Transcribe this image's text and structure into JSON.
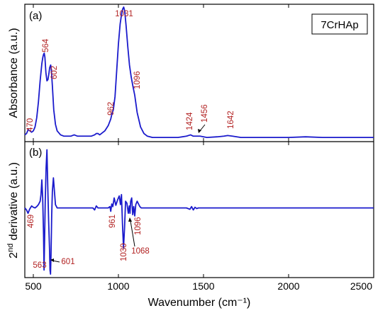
{
  "chart_data": [
    {
      "type": "line",
      "panel": "(a)",
      "legend": "7CrHAp",
      "xlabel": "Wavenumber (cm⁻¹)",
      "ylabel": "Absorbance (a.u.)",
      "xlim": [
        450,
        2500
      ],
      "ylim": [
        0,
        1.0
      ],
      "xticks": [
        500,
        1000,
        1500,
        2000,
        2500
      ],
      "series": [
        {
          "color": "#1a1acc",
          "x": [
            450,
            460,
            470,
            480,
            490,
            500,
            510,
            520,
            530,
            540,
            550,
            556,
            560,
            564,
            568,
            574,
            580,
            586,
            592,
            596,
            602,
            606,
            612,
            620,
            630,
            640,
            660,
            680,
            700,
            720,
            740,
            760,
            780,
            800,
            820,
            840,
            860,
            870,
            880,
            890,
            900,
            920,
            940,
            955,
            962,
            970,
            980,
            990,
            1000,
            1010,
            1020,
            1025,
            1031,
            1037,
            1045,
            1055,
            1065,
            1075,
            1085,
            1096,
            1110,
            1130,
            1150,
            1170,
            1200,
            1250,
            1300,
            1350,
            1400,
            1424,
            1440,
            1456,
            1480,
            1520,
            1580,
            1620,
            1642,
            1670,
            1720,
            1800,
            1900,
            2000,
            2100,
            2200,
            2300,
            2400,
            2500
          ],
          "y": [
            0.03,
            0.04,
            0.07,
            0.06,
            0.05,
            0.06,
            0.09,
            0.16,
            0.28,
            0.44,
            0.57,
            0.62,
            0.64,
            0.65,
            0.62,
            0.5,
            0.44,
            0.45,
            0.5,
            0.54,
            0.56,
            0.52,
            0.4,
            0.22,
            0.11,
            0.06,
            0.03,
            0.02,
            0.02,
            0.02,
            0.03,
            0.02,
            0.02,
            0.02,
            0.02,
            0.02,
            0.03,
            0.04,
            0.04,
            0.03,
            0.04,
            0.06,
            0.1,
            0.15,
            0.19,
            0.22,
            0.32,
            0.52,
            0.72,
            0.87,
            0.96,
            0.985,
            1.0,
            0.97,
            0.86,
            0.7,
            0.56,
            0.47,
            0.4,
            0.33,
            0.2,
            0.09,
            0.04,
            0.02,
            0.01,
            0.01,
            0.01,
            0.01,
            0.02,
            0.03,
            0.02,
            0.02,
            0.02,
            0.01,
            0.015,
            0.02,
            0.025,
            0.02,
            0.01,
            0.01,
            0.01,
            0.01,
            0.015,
            0.01,
            0.01,
            0.01,
            0.01
          ]
        }
      ],
      "annotations": [
        "470",
        "564",
        "602",
        "962",
        "1031",
        "1096",
        "1424",
        "1456",
        "1642"
      ]
    },
    {
      "type": "line",
      "panel": "(b)",
      "xlabel": "Wavenumber (cm⁻¹)",
      "ylabel_prefix": "2",
      "ylabel_sup": "nd",
      "ylabel_suffix": " derivative (a.u.)",
      "xlim": [
        450,
        2500
      ],
      "ylim": [
        -1.0,
        0.95
      ],
      "xticks": [
        500,
        1000,
        1500,
        2000,
        2500
      ],
      "xtick_labels": [
        "500",
        "1000",
        "1500",
        "2000",
        "2500"
      ],
      "series": [
        {
          "color": "#1a1acc",
          "x": [
            450,
            460,
            469,
            478,
            490,
            500,
            510,
            520,
            530,
            540,
            545,
            550,
            555,
            560,
            563,
            566,
            570,
            575,
            580,
            585,
            590,
            595,
            598,
            601,
            604,
            608,
            612,
            618,
            624,
            630,
            640,
            660,
            700,
            750,
            800,
            850,
            860,
            870,
            880,
            900,
            920,
            940,
            950,
            955,
            961,
            967,
            975,
            985,
            995,
            1005,
            1012,
            1018,
            1024,
            1030,
            1036,
            1042,
            1050,
            1058,
            1064,
            1068,
            1072,
            1078,
            1084,
            1090,
            1096,
            1102,
            1110,
            1118,
            1126,
            1134,
            1145,
            1160,
            1200,
            1300,
            1400,
            1420,
            1430,
            1440,
            1450,
            1460,
            1470,
            1500,
            1600,
            1700,
            1800,
            2000,
            2200,
            2400,
            2500
          ],
          "y": [
            0,
            -0.03,
            -0.08,
            -0.02,
            0.03,
            0.01,
            0,
            0.02,
            0.05,
            0.1,
            0.2,
            0.42,
            0.15,
            -0.4,
            -0.93,
            -0.5,
            0.1,
            0.6,
            0.87,
            0.3,
            -0.2,
            -0.6,
            -0.93,
            -0.99,
            -0.7,
            -0.1,
            0.25,
            0.45,
            0.25,
            0.05,
            0,
            0,
            0,
            0,
            0,
            0,
            -0.03,
            0.03,
            0,
            0,
            0,
            0,
            0.02,
            -0.05,
            0.06,
            0.02,
            0.15,
            0.04,
            0.12,
            0.18,
            0.05,
            0.2,
            -0.25,
            -0.6,
            -0.3,
            0.1,
            0.07,
            -0.08,
            0.03,
            -0.08,
            0.1,
            0.15,
            -0.1,
            0.02,
            -0.12,
            0.05,
            0.1,
            0.06,
            0.02,
            0,
            0,
            0,
            0,
            0,
            0,
            -0.02,
            0.02,
            -0.03,
            0.01,
            -0.01,
            0,
            0,
            0,
            0,
            0,
            0,
            0,
            0,
            0
          ]
        }
      ],
      "annotations": [
        "469",
        "563",
        "601",
        "961",
        "1030",
        "1068",
        "1096"
      ]
    }
  ]
}
